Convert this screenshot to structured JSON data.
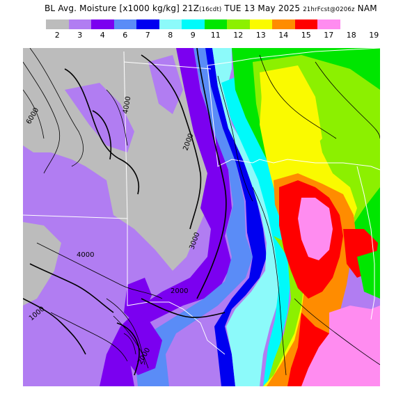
{
  "header": {
    "title_main": "BL Avg. Moisture [x1000 kg/kg] 21Z",
    "title_time_zone": "(16cdt)",
    "title_date": "TUE 13 May 2025",
    "title_forecast": "21hrFcst@0206z",
    "title_model": "NAM"
  },
  "legend": {
    "bins": [
      {
        "label": "2",
        "color": "#bcbcbc"
      },
      {
        "label": "3",
        "color": "#b17df2"
      },
      {
        "label": "4",
        "color": "#7b00f0"
      },
      {
        "label": "6",
        "color": "#5a8cf7"
      },
      {
        "label": "7",
        "color": "#0000f0"
      },
      {
        "label": "8",
        "color": "#8cfafa"
      },
      {
        "label": "9",
        "color": "#00fafa"
      },
      {
        "label": "11",
        "color": "#00e600"
      },
      {
        "label": "12",
        "color": "#8cf000"
      },
      {
        "label": "13",
        "color": "#fafa00"
      },
      {
        "label": "14",
        "color": "#ff8c00"
      },
      {
        "label": "15",
        "color": "#ff0000"
      },
      {
        "label": "17",
        "color": "#ff8cf0"
      }
    ],
    "last_label": "18",
    "extra_label": "19"
  },
  "map": {
    "contour_labels": [
      "6000",
      "4000",
      "2000",
      "3000",
      "4000",
      "2000",
      "1000",
      "2000"
    ]
  }
}
